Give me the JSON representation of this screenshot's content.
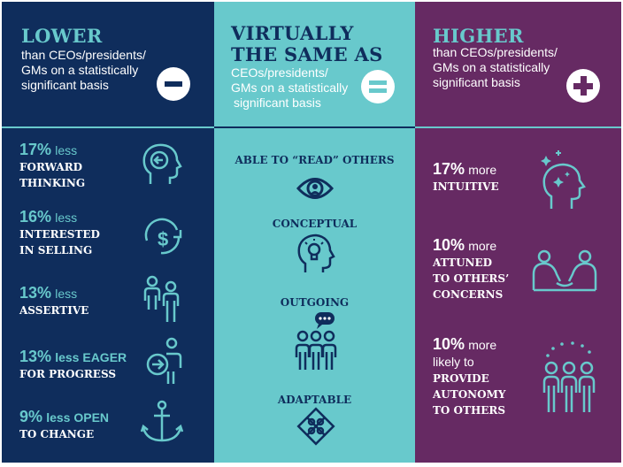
{
  "colors": {
    "navy": "#0f2d5c",
    "teal": "#68c9cc",
    "purple": "#662a63",
    "white": "#ffffff"
  },
  "lower": {
    "title": "LOWER",
    "subtitle": [
      "than CEOs/presidents/",
      "GMs on a statistically",
      "significant basis"
    ],
    "sign_icon": "minus-icon",
    "items": [
      {
        "pct": "17%",
        "qualifier": "less",
        "lines": [
          "FORWARD",
          "THINKING"
        ],
        "icon": "head-with-arrow-icon"
      },
      {
        "pct": "16%",
        "qualifier": "less",
        "lines": [
          "INTERESTED",
          "IN SELLING"
        ],
        "icon": "dollar-cycle-icon"
      },
      {
        "pct": "13%",
        "qualifier": "less",
        "lines": [
          "ASSERTIVE"
        ],
        "icon": "two-people-icon"
      },
      {
        "pct": "13%",
        "qualifier": "less EAGER",
        "lines": [
          "FOR PROGRESS"
        ],
        "icon": "person-arrow-icon"
      },
      {
        "pct": "9%",
        "qualifier": "less OPEN",
        "lines": [
          "TO CHANGE"
        ],
        "icon": "anchor-icon"
      }
    ]
  },
  "same": {
    "title": [
      "VIRTUALLY",
      "THE SAME AS"
    ],
    "subtitle": [
      "CEOs/presidents/",
      "GMs on a statistically",
      "significant basis"
    ],
    "sign_icon": "equals-icon",
    "items": [
      {
        "label": "ABLE TO “READ” OTHERS",
        "icon": "eye-icon"
      },
      {
        "label": "CONCEPTUAL",
        "icon": "head-lightbulb-icon"
      },
      {
        "label": "OUTGOING",
        "icon": "group-chat-icon"
      },
      {
        "label": "ADAPTABLE",
        "icon": "puzzle-icon"
      }
    ]
  },
  "higher": {
    "title": "HIGHER",
    "subtitle": [
      "than CEOs/presidents/",
      "GMs on a statistically",
      "significant basis"
    ],
    "sign_icon": "plus-icon",
    "items": [
      {
        "pct": "17%",
        "qualifier": "more",
        "lines": [
          "INTUITIVE"
        ],
        "icon": "head-sparkle-icon"
      },
      {
        "pct": "10%",
        "qualifier": "more",
        "lines": [
          "ATTUNED",
          "TO OTHERS’",
          "CONCERNS"
        ],
        "icon": "handshake-people-icon"
      },
      {
        "pct": "10%",
        "qualifier": "more",
        "lines": [
          "likely to",
          "PROVIDE",
          "AUTONOMY",
          "TO OTHERS"
        ],
        "icon": "team-icon"
      }
    ]
  }
}
